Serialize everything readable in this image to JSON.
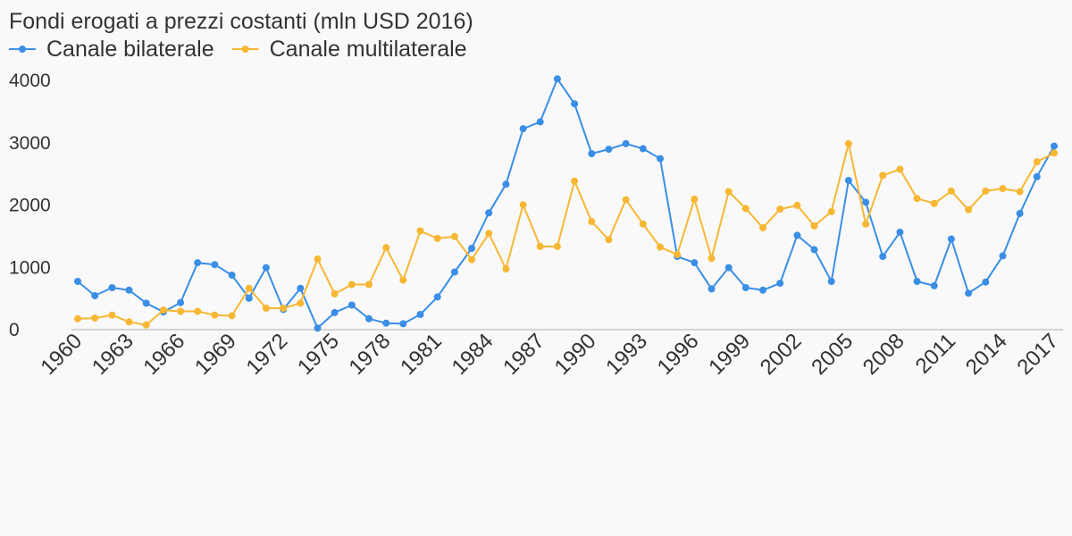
{
  "chart_data": {
    "type": "line",
    "title": "Fondi erogati a prezzi costanti (mln USD 2016)",
    "xlabel": "",
    "ylabel": "",
    "x": [
      1960,
      1961,
      1962,
      1963,
      1964,
      1965,
      1966,
      1967,
      1968,
      1969,
      1970,
      1971,
      1972,
      1973,
      1974,
      1975,
      1976,
      1977,
      1978,
      1979,
      1980,
      1981,
      1982,
      1983,
      1984,
      1985,
      1986,
      1987,
      1988,
      1989,
      1990,
      1991,
      1992,
      1993,
      1994,
      1995,
      1996,
      1997,
      1998,
      1999,
      2000,
      2001,
      2002,
      2003,
      2004,
      2005,
      2006,
      2007,
      2008,
      2009,
      2010,
      2011,
      2012,
      2013,
      2014,
      2015,
      2016,
      2017
    ],
    "xtick_labels": [
      "1960",
      "1963",
      "1966",
      "1969",
      "1972",
      "1975",
      "1978",
      "1981",
      "1984",
      "1987",
      "1990",
      "1993",
      "1996",
      "1999",
      "2002",
      "2005",
      "2008",
      "2011",
      "2014",
      "2017"
    ],
    "yticks": [
      0,
      1000,
      2000,
      3000,
      4000
    ],
    "ytick_labels": [
      "0",
      "1000",
      "2000",
      "3000",
      "4000"
    ],
    "ylim": [
      0,
      4000
    ],
    "grid": false,
    "legend_position": "top-left",
    "series": [
      {
        "name": "Canale bilaterale",
        "color": "#3a8ee6",
        "values": [
          760,
          530,
          660,
          620,
          410,
          270,
          420,
          1060,
          1030,
          860,
          490,
          980,
          310,
          650,
          10,
          260,
          380,
          160,
          90,
          80,
          230,
          510,
          910,
          1290,
          1860,
          2320,
          3210,
          3320,
          4010,
          3610,
          2810,
          2880,
          2970,
          2890,
          2730,
          1160,
          1060,
          640,
          980,
          660,
          620,
          730,
          1500,
          1270,
          760,
          2380,
          2030,
          1160,
          1550,
          760,
          690,
          1440,
          570,
          750,
          1170,
          1850,
          2440,
          2930
        ]
      },
      {
        "name": "Canale multilaterale",
        "color": "#f7b733",
        "values": [
          160,
          170,
          220,
          110,
          60,
          300,
          280,
          280,
          220,
          210,
          650,
          330,
          330,
          410,
          1120,
          560,
          710,
          710,
          1300,
          780,
          1570,
          1450,
          1480,
          1110,
          1530,
          960,
          1990,
          1320,
          1320,
          2370,
          1720,
          1430,
          2070,
          1680,
          1310,
          1190,
          2080,
          1130,
          2200,
          1930,
          1620,
          1920,
          1980,
          1650,
          1880,
          2970,
          1680,
          2460,
          2560,
          2090,
          2010,
          2210,
          1910,
          2210,
          2250,
          2200,
          2680,
          2820
        ]
      }
    ]
  }
}
